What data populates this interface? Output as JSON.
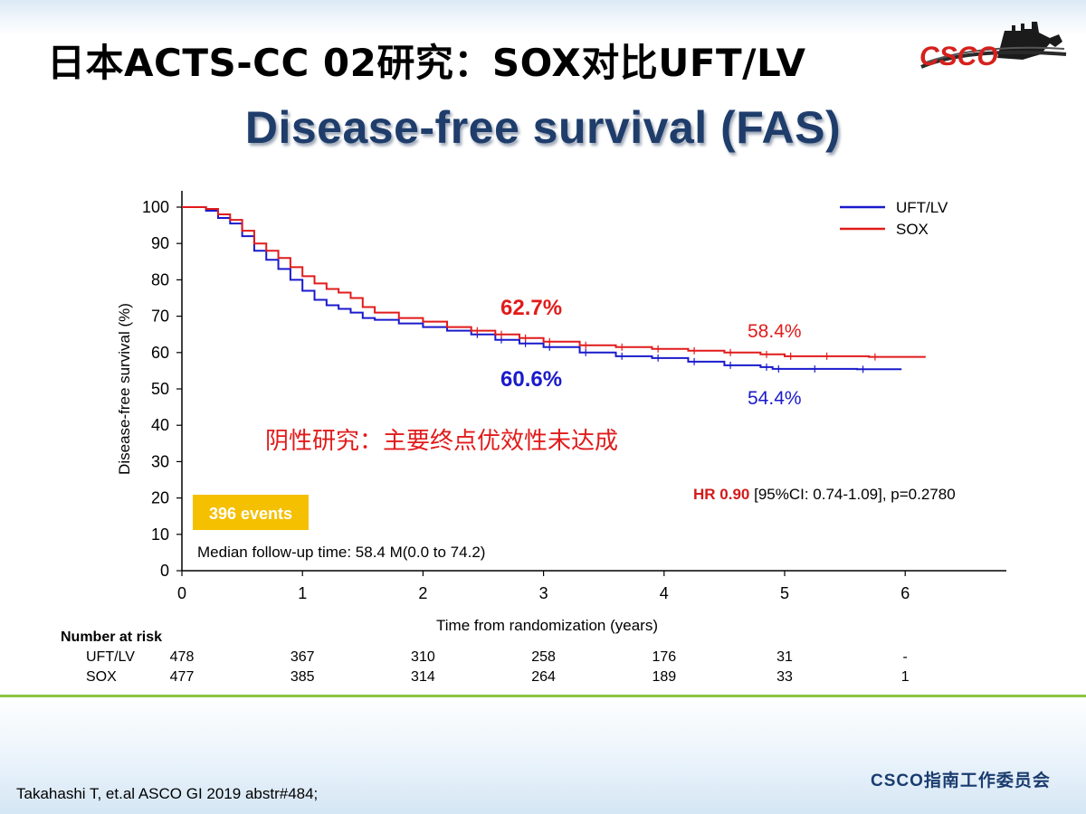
{
  "slide": {
    "title": "日本ACTS-CC 02研究：SOX对比UFT/LV",
    "logo_text": "CSCO",
    "reference": "Takahashi T, et.al ASCO GI 2019 abstr#484;",
    "committee": "CSCO指南工作委员会"
  },
  "chart_data": {
    "type": "line",
    "title": "Disease-free survival (FAS)",
    "xlabel": "Time from randomization (years)",
    "ylabel": "Disease-free survival (%)",
    "xlim": [
      0,
      6.8
    ],
    "ylim": [
      0,
      100
    ],
    "xticks": [
      "0",
      "1",
      "2",
      "3",
      "4",
      "5",
      "6"
    ],
    "yticks": [
      "0",
      "10",
      "20",
      "30",
      "40",
      "50",
      "60",
      "70",
      "80",
      "90",
      "100"
    ],
    "legend_position": "top-right",
    "series": [
      {
        "name": "UFT/LV",
        "color": "#1a1acc",
        "x": [
          0,
          0.1,
          0.2,
          0.3,
          0.4,
          0.5,
          0.6,
          0.7,
          0.8,
          0.9,
          1.0,
          1.1,
          1.2,
          1.3,
          1.4,
          1.5,
          1.6,
          1.8,
          2.0,
          2.2,
          2.4,
          2.6,
          2.8,
          3.0,
          3.3,
          3.6,
          3.9,
          4.2,
          4.5,
          4.8,
          4.9,
          5.2,
          5.6,
          5.97
        ],
        "y": [
          100,
          100,
          99,
          97,
          95.5,
          92,
          88,
          85.5,
          83,
          80,
          77,
          74.5,
          73,
          72,
          71,
          69.5,
          69,
          68,
          67,
          66,
          65,
          63.5,
          62.5,
          61.5,
          60,
          59,
          58.5,
          57.5,
          56.5,
          56,
          55.5,
          55.5,
          55.4,
          55.4
        ],
        "end_label": "54.4%",
        "mid_label": "60.6%",
        "risk": [
          "478",
          "367",
          "310",
          "258",
          "176",
          "31",
          "-"
        ]
      },
      {
        "name": "SOX",
        "color": "#e11b1b",
        "x": [
          0,
          0.1,
          0.2,
          0.3,
          0.4,
          0.5,
          0.6,
          0.7,
          0.8,
          0.9,
          1.0,
          1.1,
          1.2,
          1.3,
          1.4,
          1.5,
          1.6,
          1.8,
          2.0,
          2.2,
          2.4,
          2.6,
          2.8,
          3.0,
          3.3,
          3.6,
          3.9,
          4.2,
          4.5,
          4.8,
          5.0,
          5.3,
          5.7,
          6.17
        ],
        "y": [
          100,
          100,
          99.5,
          98,
          96.5,
          93.5,
          90,
          88,
          86,
          83.5,
          81,
          79,
          77.5,
          76.5,
          75,
          72.5,
          71,
          69.5,
          68.5,
          67,
          66,
          65,
          64,
          63,
          62,
          61.5,
          61,
          60.5,
          60,
          59.5,
          59,
          59,
          58.8,
          58.8
        ],
        "end_label": "58.4%",
        "mid_label": "62.7%",
        "risk": [
          "477",
          "385",
          "314",
          "264",
          "189",
          "33",
          "1"
        ]
      }
    ],
    "annotations": {
      "negative_note": "阴性研究：主要终点优效性未达成",
      "hr_label": "HR 0.90",
      "hr_rest": " [95%CI: 0.74-1.09], p=0.2780",
      "events_badge": "396 events",
      "median_followup": "Median follow-up time: 58.4 M(0.0 to 74.2)"
    },
    "risk_table": {
      "header": "Number at risk",
      "times": [
        0,
        1,
        2,
        3,
        4,
        5,
        6
      ]
    }
  }
}
